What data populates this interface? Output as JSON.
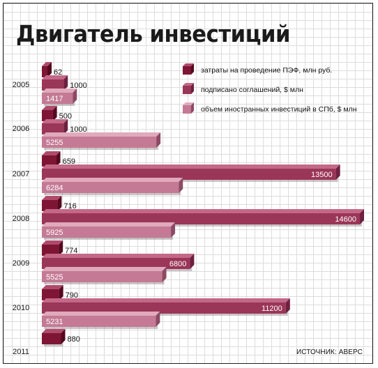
{
  "title": "Двигатель инвестиций",
  "source": "ИСТОЧНИК: АВЕРС",
  "colors": {
    "series_front": [
      "#7e1534",
      "#9a3658",
      "#c47a94"
    ],
    "series_top": [
      "#b04a6c",
      "#c46888",
      "#e0aabc"
    ],
    "series_side": [
      "#55091f",
      "#6e2040",
      "#8c4a64"
    ],
    "shadow": "#6a5a62"
  },
  "chart_data": {
    "type": "bar",
    "orientation": "horizontal",
    "title": "Двигатель инвестиций",
    "categories": [
      "2005",
      "2006",
      "2007",
      "2008",
      "2009",
      "2010",
      "2011"
    ],
    "series": [
      {
        "name": "затраты на проведение ПЭФ, млн руб.",
        "values": [
          62,
          500,
          659,
          716,
          774,
          790,
          880
        ]
      },
      {
        "name": "подписано соглашений, $ млн",
        "values": [
          1000,
          1000,
          13500,
          14600,
          6800,
          11200,
          null
        ]
      },
      {
        "name": "объем иностранных инвестиций в СПб, $ млн",
        "values": [
          1417,
          5255,
          6284,
          5925,
          5525,
          5231,
          null
        ]
      }
    ],
    "value_labels": [
      [
        "62",
        "500",
        "659",
        "716",
        "774",
        "790",
        "880"
      ],
      [
        "1000",
        "1000",
        "13500",
        "14600",
        "6800",
        "11200",
        ""
      ],
      [
        "1417",
        "5255",
        "6284",
        "5925",
        "5525",
        "5231",
        ""
      ]
    ],
    "legend_position": "top-right",
    "grid": true
  }
}
